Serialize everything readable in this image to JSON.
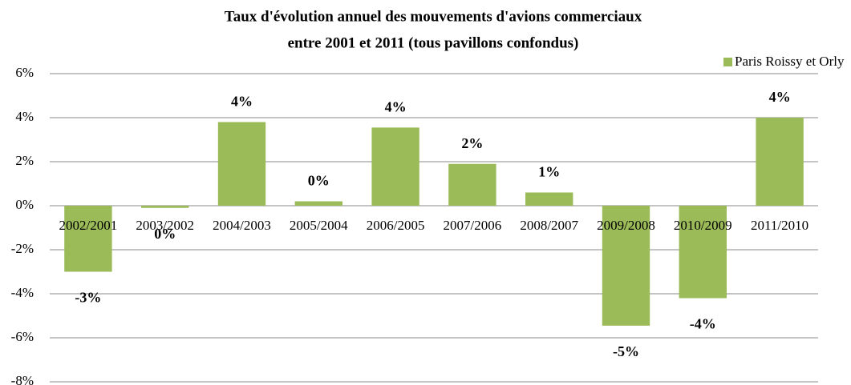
{
  "chart_data": {
    "type": "bar",
    "title": [
      "Taux d'évolution annuel des mouvements d'avions commerciaux",
      "entre 2001 et 2011 (tous pavillons confondus)"
    ],
    "categories": [
      "2002/2001",
      "2003/2002",
      "2004/2003",
      "2005/2004",
      "2006/2005",
      "2007/2006",
      "2008/2007",
      "2009/2008",
      "2010/2009",
      "2011/2010"
    ],
    "series": [
      {
        "name": "Paris Roissy et Orly",
        "color": "#9bbb59",
        "values": [
          -3.0,
          -0.1,
          3.8,
          0.2,
          3.55,
          1.9,
          0.6,
          -5.45,
          -4.2,
          4.0
        ],
        "value_labels": [
          "-3%",
          "0%",
          "4%",
          "0%",
          "4%",
          "2%",
          "1%",
          "-5%",
          "-4%",
          "4%"
        ]
      }
    ],
    "ylim": [
      -8,
      6
    ],
    "yticks": [
      {
        "value": -8,
        "label": "-8%"
      },
      {
        "value": -6,
        "label": "-6%"
      },
      {
        "value": -4,
        "label": "-4%"
      },
      {
        "value": -2,
        "label": "-2%"
      },
      {
        "value": 0,
        "label": "0%"
      },
      {
        "value": 2,
        "label": "2%"
      },
      {
        "value": 4,
        "label": "4%"
      },
      {
        "value": 6,
        "label": "6%"
      }
    ],
    "grid": true,
    "legend": "top-right"
  }
}
